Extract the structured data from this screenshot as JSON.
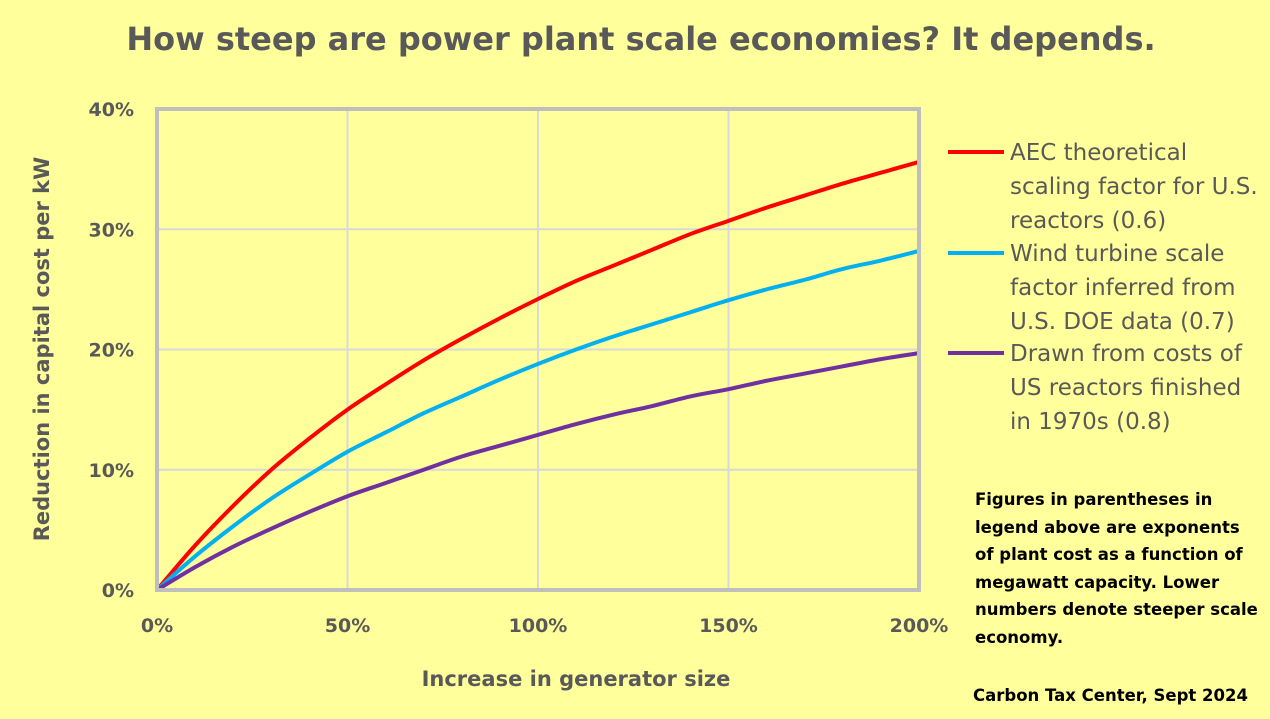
{
  "chart_data": {
    "type": "line",
    "title": "How steep are power plant scale economies? It depends.",
    "xlabel": "Increase in generator size",
    "ylabel": "Reduction in capital cost per kW",
    "x_ticks": [
      "0%",
      "50%",
      "100%",
      "150%",
      "200%"
    ],
    "y_ticks": [
      "0%",
      "10%",
      "20%",
      "30%",
      "40%"
    ],
    "xlim": [
      0,
      200
    ],
    "ylim": [
      0,
      40
    ],
    "grid": true,
    "legend_position": "right",
    "x": [
      0,
      10,
      20,
      30,
      40,
      50,
      60,
      70,
      80,
      90,
      100,
      110,
      120,
      130,
      140,
      150,
      160,
      170,
      180,
      190,
      200
    ],
    "series": [
      {
        "name": "AEC theoretical scaling factor for U.S. reactors (0.6)",
        "color": "#FF0000",
        "values": [
          0,
          3.7,
          7.0,
          10.0,
          12.6,
          15.0,
          17.1,
          19.1,
          20.9,
          22.6,
          24.2,
          25.7,
          27.0,
          28.3,
          29.6,
          30.7,
          31.8,
          32.8,
          33.8,
          34.7,
          35.6
        ]
      },
      {
        "name": "Wind turbine scale factor inferred from U.S. DOE data (0.7)",
        "color": "#00B0F0",
        "values": [
          0,
          2.8,
          5.3,
          7.6,
          9.6,
          11.5,
          13.1,
          14.7,
          16.1,
          17.5,
          18.8,
          20.0,
          21.1,
          22.1,
          23.1,
          24.1,
          25.0,
          25.8,
          26.7,
          27.4,
          28.2
        ]
      },
      {
        "name": "Drawn from costs of US reactors finished in 1970s (0.8)",
        "color": "#7030A0",
        "values": [
          0,
          1.9,
          3.6,
          5.1,
          6.5,
          7.8,
          8.9,
          10.0,
          11.1,
          12.0,
          12.9,
          13.8,
          14.6,
          15.3,
          16.1,
          16.7,
          17.4,
          18.0,
          18.6,
          19.2,
          19.7
        ]
      }
    ],
    "legend_lines": [
      [
        "AEC theoretical",
        "scaling factor for U.S.",
        "reactors (0.6)"
      ],
      [
        "Wind turbine scale",
        "factor inferred from",
        "U.S. DOE data (0.7)"
      ],
      [
        "Drawn from costs of",
        "US reactors finished",
        "in 1970s (0.8)"
      ]
    ]
  },
  "note": "Figures in parentheses in legend above are exponents of plant cost as a function of megawatt capacity. Lower numbers denote steeper scale economy.",
  "credit": "Carbon Tax Center, Sept 2024",
  "colors": {
    "background": "#FFFF9B",
    "plot_border": "#BFBFBF",
    "gridline": "#D9D9D9",
    "text": "#595959"
  }
}
